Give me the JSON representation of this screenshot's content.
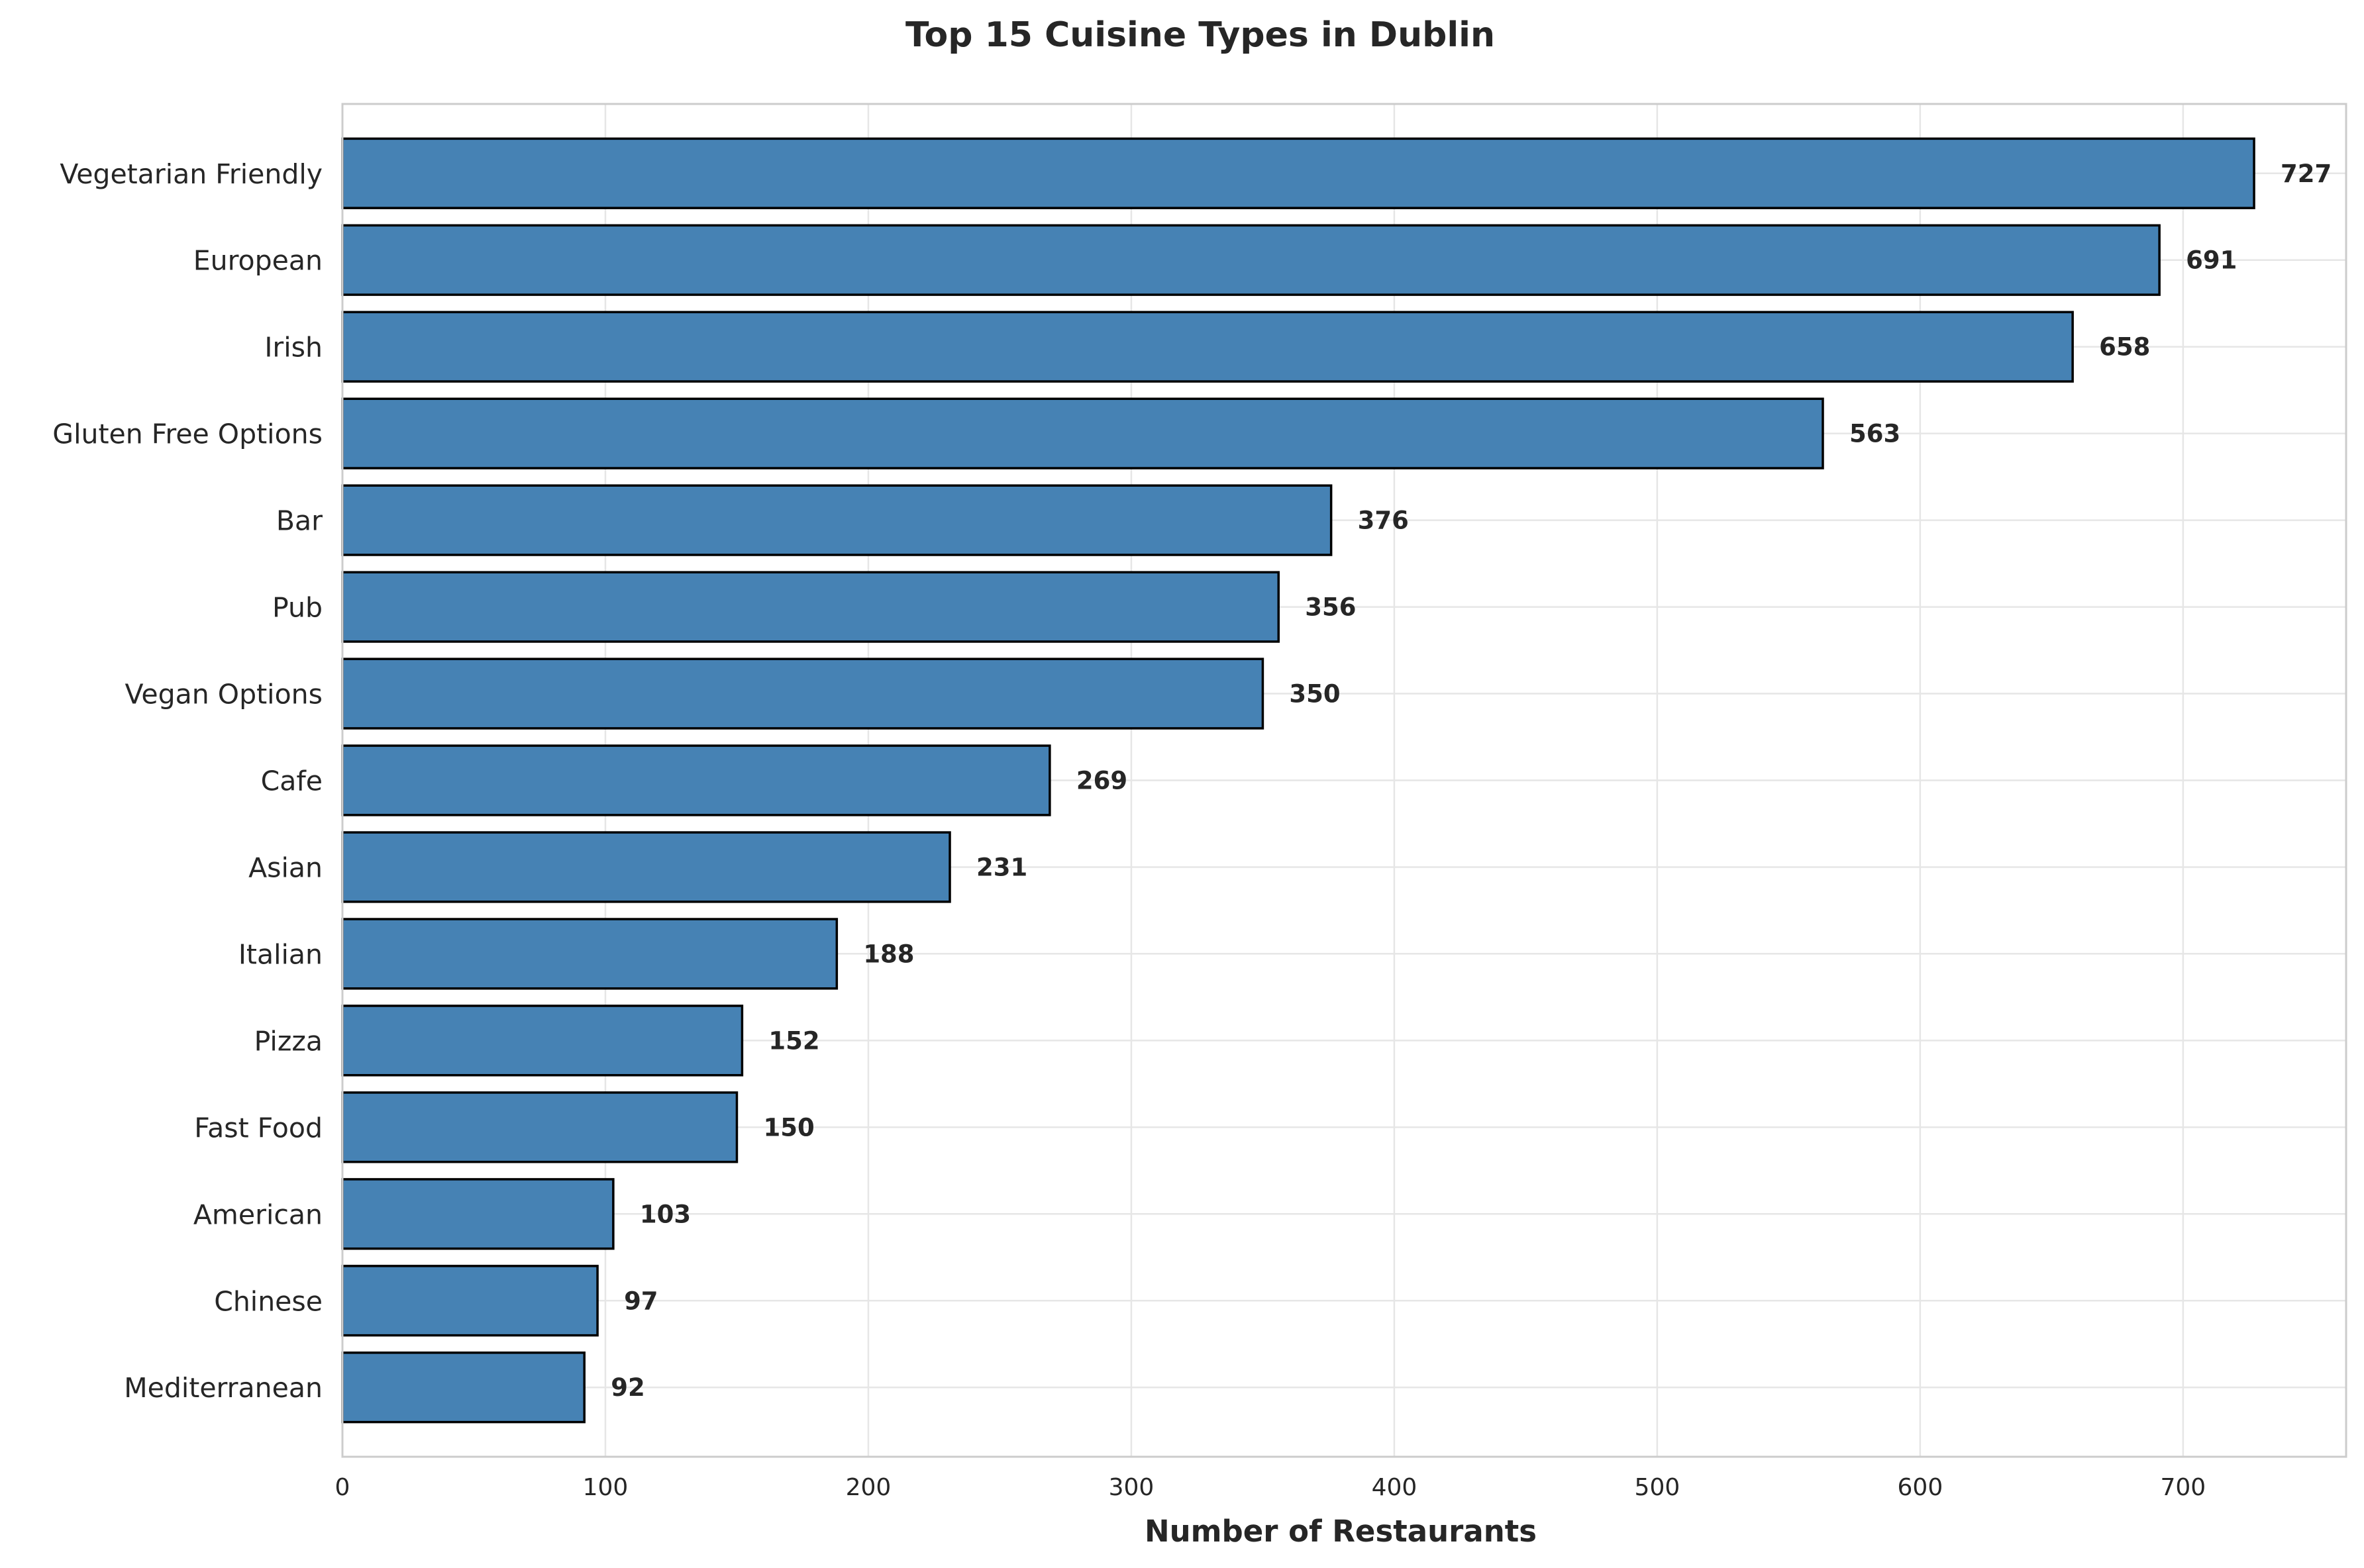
{
  "chart_data": {
    "type": "bar",
    "orientation": "horizontal",
    "title": "Top 15 Cuisine Types in Dublin",
    "xlabel": "Number of Restaurants",
    "ylabel": "",
    "xlim": [
      0,
      762
    ],
    "xticks": [
      0,
      100,
      200,
      300,
      400,
      500,
      600,
      700
    ],
    "grid": true,
    "legend": "none",
    "colors": {
      "bar_fill": "#4682b4",
      "bar_edge": "#000000",
      "grid": "#e6e6e6",
      "axes_frame": "#cccccc",
      "text": "#262626"
    },
    "categories": [
      "Vegetarian Friendly",
      "European",
      "Irish",
      "Gluten Free Options",
      "Bar",
      "Pub",
      "Vegan Options",
      "Cafe",
      "Asian",
      "Italian",
      "Pizza",
      "Fast Food",
      "American",
      "Chinese",
      "Mediterranean"
    ],
    "values": [
      727,
      691,
      658,
      563,
      376,
      356,
      350,
      269,
      231,
      188,
      152,
      150,
      103,
      97,
      92
    ]
  }
}
